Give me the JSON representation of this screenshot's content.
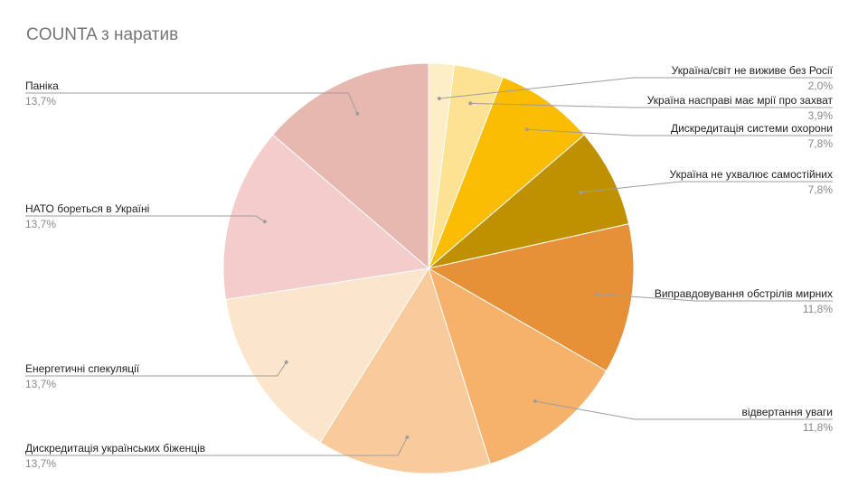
{
  "chart_data": {
    "type": "pie",
    "title": "COUNTA з наратив",
    "start_angle_deg": 0,
    "direction": "clockwise",
    "slices": [
      {
        "label": "Україна/світ не виживе без Росії",
        "value": 2.0,
        "pct_label": "2,0%",
        "color": "#fdeec7",
        "label_side": "right"
      },
      {
        "label": "Україна насправі має мрії про захват",
        "value": 3.9,
        "pct_label": "3,9%",
        "color": "#fde293",
        "label_side": "right"
      },
      {
        "label": "Дискредитація системи охорони",
        "value": 7.8,
        "pct_label": "7,8%",
        "color": "#fbbc04",
        "label_side": "right"
      },
      {
        "label": "Україна не ухвалює самостійних",
        "value": 7.8,
        "pct_label": "7,8%",
        "color": "#bf9000",
        "label_side": "right"
      },
      {
        "label": "Виправдовування обстрілів мирних",
        "value": 11.8,
        "pct_label": "11,8%",
        "color": "#e69138",
        "label_side": "right"
      },
      {
        "label": "відвертання уваги",
        "value": 11.8,
        "pct_label": "11,8%",
        "color": "#f6b26b",
        "label_side": "right"
      },
      {
        "label": "Дискредитація українських біженців",
        "value": 13.7,
        "pct_label": "13,7%",
        "color": "#f9cb9c",
        "label_side": "left"
      },
      {
        "label": "Енергетичні спекуляції",
        "value": 13.7,
        "pct_label": "13,7%",
        "color": "#fce5cd",
        "label_side": "left"
      },
      {
        "label": "НАТО бореться в Україні",
        "value": 13.7,
        "pct_label": "13,7%",
        "color": "#f4cccc",
        "label_side": "left"
      },
      {
        "label": "Паніка",
        "value": 13.7,
        "pct_label": "13,7%",
        "color": "#e6b8af",
        "label_side": "left"
      }
    ]
  }
}
